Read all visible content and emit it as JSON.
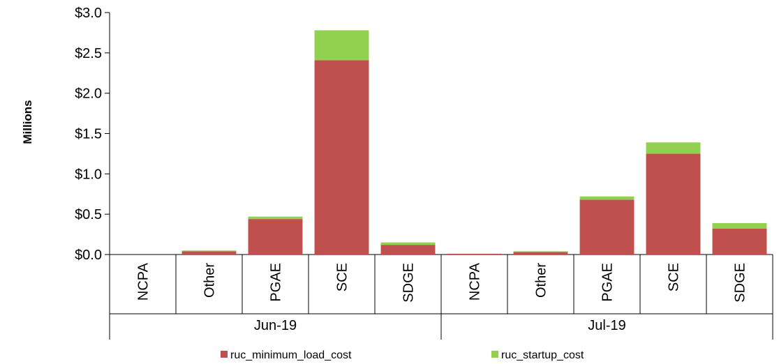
{
  "chart_data": {
    "type": "bar",
    "stacked": true,
    "ylabel": "Millions",
    "ylim": [
      0,
      3.0
    ],
    "ytick_values": [
      0,
      0.5,
      1.0,
      1.5,
      2.0,
      2.5,
      3.0
    ],
    "ytick_labels": [
      "$0.0",
      "$0.5",
      "$1.0",
      "$1.5",
      "$2.0",
      "$2.5",
      "$3.0"
    ],
    "groups": [
      {
        "label": "Jun-19",
        "categories": [
          "NCPA",
          "Other",
          "PGAE",
          "SCE",
          "SDGE"
        ]
      },
      {
        "label": "Jul-19",
        "categories": [
          "NCPA",
          "Other",
          "PGAE",
          "SCE",
          "SDGE"
        ]
      }
    ],
    "series": [
      {
        "name": "ruc_minimum_load_cost",
        "color": "#c0504d",
        "values": [
          0.0,
          0.04,
          0.44,
          2.41,
          0.12,
          0.01,
          0.03,
          0.68,
          1.25,
          0.32
        ]
      },
      {
        "name": "ruc_startup_cost",
        "color": "#92d050",
        "values": [
          0.0,
          0.01,
          0.03,
          0.37,
          0.03,
          0.0,
          0.01,
          0.04,
          0.14,
          0.07
        ]
      }
    ],
    "legend_position": "bottom",
    "grid": false
  }
}
